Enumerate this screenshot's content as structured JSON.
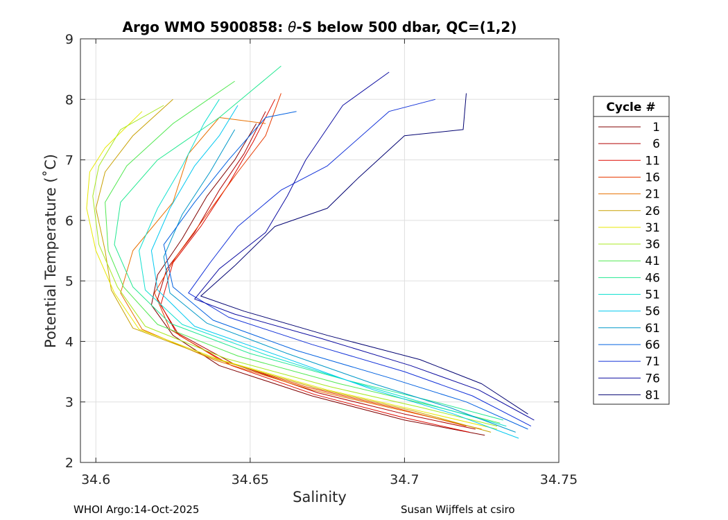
{
  "chart_data": {
    "type": "line",
    "title_prefix": "Argo WMO 5900858: ",
    "title_theta": "θ",
    "title_suffix": "-S below 500 dbar,  QC=(1,2)",
    "xlabel": "Salinity",
    "ylabel": "Potential Temperature (˚C)",
    "xlim": [
      34.595,
      34.75
    ],
    "ylim": [
      2,
      9
    ],
    "xticks": [
      34.6,
      34.65,
      34.7,
      34.75
    ],
    "xtick_labels": [
      "34.6",
      "34.65",
      "34.7",
      "34.75"
    ],
    "yticks": [
      2,
      3,
      4,
      5,
      6,
      7,
      8,
      9
    ],
    "ytick_labels": [
      "2",
      "3",
      "4",
      "5",
      "6",
      "7",
      "8",
      "9"
    ],
    "grid": true,
    "legend_title": "Cycle #",
    "legend_position": "right-outside",
    "series": [
      {
        "name": "1",
        "color": "#800000",
        "points": [
          [
            34.726,
            2.45
          ],
          [
            34.7,
            2.7
          ],
          [
            34.67,
            3.1
          ],
          [
            34.64,
            3.6
          ],
          [
            34.625,
            4.1
          ],
          [
            34.618,
            4.6
          ],
          [
            34.62,
            5.1
          ],
          [
            34.628,
            5.7
          ],
          [
            34.636,
            6.4
          ],
          [
            34.645,
            7.0
          ],
          [
            34.652,
            7.6
          ]
        ]
      },
      {
        "name": "6",
        "color": "#b00000",
        "points": [
          [
            34.723,
            2.55
          ],
          [
            34.7,
            2.8
          ],
          [
            34.672,
            3.15
          ],
          [
            34.645,
            3.62
          ],
          [
            34.626,
            4.15
          ],
          [
            34.62,
            4.7
          ],
          [
            34.623,
            5.2
          ],
          [
            34.632,
            5.8
          ],
          [
            34.64,
            6.5
          ],
          [
            34.648,
            7.1
          ],
          [
            34.655,
            7.8
          ]
        ]
      },
      {
        "name": "11",
        "color": "#dd0a00",
        "points": [
          [
            34.721,
            2.5
          ],
          [
            34.699,
            2.75
          ],
          [
            34.671,
            3.12
          ],
          [
            34.644,
            3.6
          ],
          [
            34.627,
            4.1
          ],
          [
            34.621,
            4.6
          ],
          [
            34.625,
            5.3
          ],
          [
            34.634,
            5.9
          ],
          [
            34.643,
            6.6
          ],
          [
            34.651,
            7.3
          ],
          [
            34.658,
            8.0
          ]
        ]
      },
      {
        "name": "16",
        "color": "#e83a00",
        "points": [
          [
            34.72,
            2.6
          ],
          [
            34.697,
            2.9
          ],
          [
            34.668,
            3.25
          ],
          [
            34.64,
            3.7
          ],
          [
            34.624,
            4.2
          ],
          [
            34.619,
            4.8
          ],
          [
            34.626,
            5.4
          ],
          [
            34.636,
            6.1
          ],
          [
            34.646,
            6.8
          ],
          [
            34.655,
            7.4
          ],
          [
            34.66,
            8.1
          ]
        ]
      },
      {
        "name": "21",
        "color": "#e87000",
        "points": [
          [
            34.725,
            2.55
          ],
          [
            34.7,
            2.85
          ],
          [
            34.67,
            3.2
          ],
          [
            34.638,
            3.7
          ],
          [
            34.615,
            4.2
          ],
          [
            34.608,
            4.8
          ],
          [
            34.612,
            5.5
          ],
          [
            34.625,
            6.3
          ],
          [
            34.63,
            7.1
          ],
          [
            34.64,
            7.7
          ],
          [
            34.655,
            7.6
          ]
        ]
      },
      {
        "name": "26",
        "color": "#c8a000",
        "points": [
          [
            34.728,
            2.5
          ],
          [
            34.703,
            2.85
          ],
          [
            34.672,
            3.22
          ],
          [
            34.638,
            3.72
          ],
          [
            34.612,
            4.22
          ],
          [
            34.605,
            4.85
          ],
          [
            34.603,
            5.5
          ],
          [
            34.6,
            6.2
          ],
          [
            34.603,
            6.8
          ],
          [
            34.612,
            7.4
          ],
          [
            34.625,
            8.0
          ]
        ]
      },
      {
        "name": "31",
        "color": "#e8e800",
        "points": [
          [
            34.73,
            2.55
          ],
          [
            34.705,
            2.85
          ],
          [
            34.675,
            3.2
          ],
          [
            34.64,
            3.7
          ],
          [
            34.614,
            4.2
          ],
          [
            34.606,
            4.8
          ],
          [
            34.6,
            5.5
          ],
          [
            34.597,
            6.2
          ],
          [
            34.598,
            6.8
          ],
          [
            34.603,
            7.2
          ],
          [
            34.615,
            7.8
          ]
        ]
      },
      {
        "name": "36",
        "color": "#a8e820",
        "points": [
          [
            34.73,
            2.6
          ],
          [
            34.706,
            2.9
          ],
          [
            34.676,
            3.25
          ],
          [
            34.642,
            3.72
          ],
          [
            34.616,
            4.25
          ],
          [
            34.607,
            4.9
          ],
          [
            34.601,
            5.6
          ],
          [
            34.599,
            6.4
          ],
          [
            34.601,
            6.9
          ],
          [
            34.608,
            7.5
          ],
          [
            34.622,
            7.9
          ]
        ]
      },
      {
        "name": "41",
        "color": "#50e850",
        "points": [
          [
            34.731,
            2.65
          ],
          [
            34.708,
            2.95
          ],
          [
            34.679,
            3.3
          ],
          [
            34.646,
            3.76
          ],
          [
            34.62,
            4.28
          ],
          [
            34.609,
            4.9
          ],
          [
            34.604,
            5.5
          ],
          [
            34.603,
            6.3
          ],
          [
            34.61,
            6.9
          ],
          [
            34.625,
            7.6
          ],
          [
            34.645,
            8.3
          ]
        ]
      },
      {
        "name": "46",
        "color": "#20e890",
        "points": [
          [
            34.732,
            2.7
          ],
          [
            34.71,
            3.0
          ],
          [
            34.682,
            3.35
          ],
          [
            34.65,
            3.8
          ],
          [
            34.624,
            4.3
          ],
          [
            34.612,
            4.9
          ],
          [
            34.606,
            5.6
          ],
          [
            34.608,
            6.3
          ],
          [
            34.62,
            7.0
          ],
          [
            34.64,
            7.7
          ],
          [
            34.66,
            8.55
          ]
        ]
      },
      {
        "name": "51",
        "color": "#10e0d0",
        "points": [
          [
            34.733,
            2.6
          ],
          [
            34.712,
            2.9
          ],
          [
            34.685,
            3.3
          ],
          [
            34.655,
            3.78
          ],
          [
            34.628,
            4.28
          ],
          [
            34.616,
            4.85
          ],
          [
            34.614,
            5.5
          ],
          [
            34.62,
            6.2
          ],
          [
            34.628,
            6.9
          ],
          [
            34.635,
            7.6
          ],
          [
            34.64,
            8.0
          ]
        ]
      },
      {
        "name": "56",
        "color": "#00c8f0",
        "points": [
          [
            34.737,
            2.4
          ],
          [
            34.716,
            2.8
          ],
          [
            34.69,
            3.2
          ],
          [
            34.66,
            3.75
          ],
          [
            34.632,
            4.25
          ],
          [
            34.62,
            4.85
          ],
          [
            34.618,
            5.5
          ],
          [
            34.624,
            6.2
          ],
          [
            34.632,
            6.9
          ],
          [
            34.64,
            7.4
          ],
          [
            34.646,
            7.9
          ]
        ]
      },
      {
        "name": "61",
        "color": "#0098c8",
        "points": [
          [
            34.736,
            2.5
          ],
          [
            34.715,
            2.9
          ],
          [
            34.69,
            3.3
          ],
          [
            34.662,
            3.8
          ],
          [
            34.636,
            4.3
          ],
          [
            34.624,
            4.8
          ],
          [
            34.622,
            5.4
          ],
          [
            34.628,
            6.1
          ],
          [
            34.637,
            6.8
          ],
          [
            34.645,
            7.5
          ]
        ]
      },
      {
        "name": "66",
        "color": "#0060e0",
        "points": [
          [
            34.74,
            2.55
          ],
          [
            34.72,
            3.0
          ],
          [
            34.695,
            3.4
          ],
          [
            34.665,
            3.85
          ],
          [
            34.638,
            4.35
          ],
          [
            34.625,
            4.9
          ],
          [
            34.622,
            5.6
          ],
          [
            34.632,
            6.3
          ],
          [
            34.643,
            7.0
          ],
          [
            34.655,
            7.7
          ],
          [
            34.665,
            7.8
          ]
        ]
      },
      {
        "name": "71",
        "color": "#1030d8",
        "points": [
          [
            34.741,
            2.6
          ],
          [
            34.722,
            3.1
          ],
          [
            34.7,
            3.5
          ],
          [
            34.67,
            3.95
          ],
          [
            34.643,
            4.4
          ],
          [
            34.63,
            4.8
          ],
          [
            34.637,
            5.3
          ],
          [
            34.646,
            5.9
          ],
          [
            34.66,
            6.5
          ],
          [
            34.675,
            6.9
          ],
          [
            34.695,
            7.8
          ],
          [
            34.71,
            8.0
          ]
        ]
      },
      {
        "name": "76",
        "color": "#0a0aa0",
        "points": [
          [
            34.742,
            2.7
          ],
          [
            34.724,
            3.2
          ],
          [
            34.702,
            3.6
          ],
          [
            34.673,
            4.05
          ],
          [
            34.645,
            4.45
          ],
          [
            34.632,
            4.7
          ],
          [
            34.64,
            5.2
          ],
          [
            34.655,
            5.8
          ],
          [
            34.662,
            6.4
          ],
          [
            34.668,
            7.0
          ],
          [
            34.68,
            7.9
          ],
          [
            34.695,
            8.45
          ]
        ]
      },
      {
        "name": "81",
        "color": "#000070",
        "points": [
          [
            34.74,
            2.8
          ],
          [
            34.725,
            3.3
          ],
          [
            34.705,
            3.7
          ],
          [
            34.675,
            4.1
          ],
          [
            34.648,
            4.5
          ],
          [
            34.634,
            4.75
          ],
          [
            34.645,
            5.25
          ],
          [
            34.658,
            5.9
          ],
          [
            34.675,
            6.2
          ],
          [
            34.685,
            6.7
          ],
          [
            34.7,
            7.4
          ],
          [
            34.719,
            7.5
          ],
          [
            34.72,
            8.1
          ]
        ]
      }
    ]
  },
  "footer": {
    "left": "WHOI Argo:14-Oct-2025",
    "right": "Susan Wijffels at csiro"
  }
}
